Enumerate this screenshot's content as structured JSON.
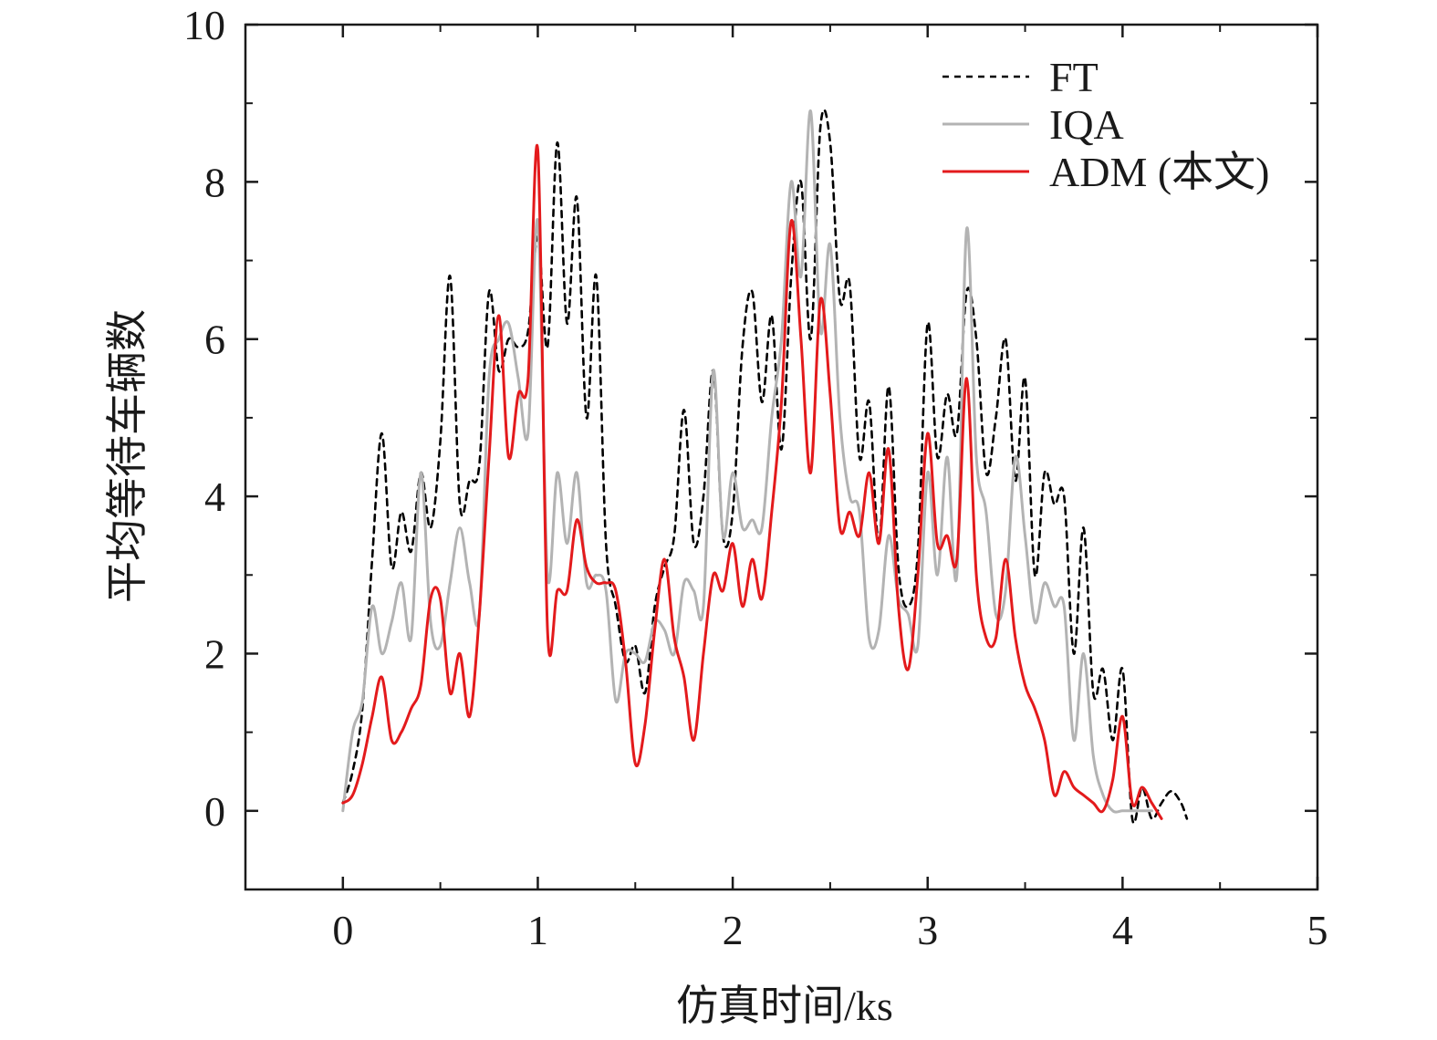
{
  "chart_data": {
    "type": "line",
    "xlabel": "仿真时间/ks",
    "ylabel": "平均等待车辆数",
    "xlim": [
      -0.5,
      5
    ],
    "ylim": [
      -1,
      10
    ],
    "xticks": [
      0,
      1,
      2,
      3,
      4,
      5
    ],
    "yticks": [
      0,
      2,
      4,
      6,
      8,
      10
    ],
    "grid": false,
    "legend_position": "top-right",
    "series": [
      {
        "name": "FT",
        "color": "#000000",
        "style": "dashed",
        "x": [
          0.0,
          0.05,
          0.1,
          0.15,
          0.2,
          0.25,
          0.3,
          0.35,
          0.4,
          0.45,
          0.5,
          0.55,
          0.6,
          0.65,
          0.7,
          0.75,
          0.8,
          0.85,
          0.9,
          0.95,
          1.0,
          1.05,
          1.1,
          1.15,
          1.2,
          1.25,
          1.3,
          1.35,
          1.4,
          1.45,
          1.5,
          1.55,
          1.6,
          1.65,
          1.7,
          1.75,
          1.8,
          1.85,
          1.9,
          1.95,
          2.0,
          2.05,
          2.1,
          2.15,
          2.2,
          2.25,
          2.3,
          2.35,
          2.4,
          2.45,
          2.5,
          2.55,
          2.6,
          2.65,
          2.7,
          2.75,
          2.8,
          2.85,
          2.9,
          2.95,
          3.0,
          3.05,
          3.1,
          3.15,
          3.2,
          3.25,
          3.3,
          3.35,
          3.4,
          3.45,
          3.5,
          3.55,
          3.6,
          3.65,
          3.7,
          3.75,
          3.8,
          3.85,
          3.9,
          3.95,
          4.0,
          4.05,
          4.1,
          4.15,
          4.2,
          4.25,
          4.3,
          4.33
        ],
        "values": [
          0.1,
          0.5,
          1.3,
          3.2,
          4.8,
          3.1,
          3.8,
          3.3,
          4.3,
          3.6,
          4.7,
          6.8,
          3.9,
          4.2,
          4.4,
          6.6,
          5.6,
          6.0,
          5.9,
          6.1,
          7.3,
          5.9,
          8.5,
          6.2,
          7.8,
          5.0,
          6.8,
          3.4,
          2.6,
          1.9,
          2.1,
          1.5,
          2.6,
          3.1,
          3.5,
          5.1,
          3.4,
          4.0,
          5.6,
          3.5,
          3.8,
          5.9,
          6.6,
          5.2,
          6.3,
          4.6,
          6.8,
          8.0,
          6.0,
          8.7,
          8.5,
          6.5,
          6.7,
          4.5,
          5.2,
          3.4,
          5.4,
          3.1,
          2.6,
          3.3,
          6.2,
          4.5,
          5.3,
          4.8,
          6.6,
          6.0,
          4.3,
          5.0,
          6.0,
          4.2,
          5.5,
          3.0,
          4.3,
          3.9,
          4.0,
          2.0,
          3.6,
          1.5,
          1.8,
          0.9,
          1.8,
          -0.1,
          0.3,
          -0.1,
          0.1,
          0.25,
          0.1,
          -0.1
        ]
      },
      {
        "name": "IQA",
        "color": "#b3b3b3",
        "style": "solid",
        "x": [
          0.0,
          0.05,
          0.1,
          0.15,
          0.2,
          0.25,
          0.3,
          0.35,
          0.4,
          0.45,
          0.5,
          0.55,
          0.6,
          0.65,
          0.7,
          0.75,
          0.8,
          0.85,
          0.9,
          0.95,
          1.0,
          1.05,
          1.1,
          1.15,
          1.2,
          1.25,
          1.3,
          1.35,
          1.4,
          1.45,
          1.5,
          1.55,
          1.6,
          1.65,
          1.7,
          1.75,
          1.8,
          1.85,
          1.9,
          1.95,
          2.0,
          2.05,
          2.1,
          2.15,
          2.2,
          2.25,
          2.3,
          2.35,
          2.4,
          2.45,
          2.5,
          2.55,
          2.6,
          2.65,
          2.7,
          2.75,
          2.8,
          2.85,
          2.9,
          2.95,
          3.0,
          3.05,
          3.1,
          3.15,
          3.2,
          3.25,
          3.3,
          3.35,
          3.4,
          3.45,
          3.5,
          3.55,
          3.6,
          3.65,
          3.7,
          3.75,
          3.8,
          3.85,
          3.9,
          3.95,
          4.0,
          4.05,
          4.1,
          4.15
        ],
        "values": [
          0.0,
          1.0,
          1.4,
          2.6,
          2.0,
          2.4,
          2.9,
          2.2,
          4.3,
          2.4,
          2.1,
          2.9,
          3.6,
          2.9,
          2.5,
          5.5,
          6.0,
          6.2,
          5.5,
          4.8,
          7.5,
          3.0,
          4.3,
          3.4,
          4.3,
          2.9,
          3.0,
          2.8,
          1.4,
          2.0,
          2.0,
          1.9,
          2.4,
          2.3,
          2.0,
          2.9,
          2.8,
          2.6,
          5.6,
          3.5,
          4.3,
          3.6,
          3.7,
          3.6,
          5.0,
          6.0,
          8.0,
          6.8,
          8.9,
          6.1,
          7.2,
          5.0,
          4.0,
          3.8,
          2.2,
          2.3,
          3.5,
          2.7,
          2.5,
          2.1,
          4.3,
          3.0,
          4.5,
          3.0,
          7.4,
          4.5,
          3.8,
          2.5,
          2.8,
          4.5,
          3.5,
          2.4,
          2.9,
          2.6,
          2.6,
          0.9,
          2.0,
          0.7,
          0.2,
          0.0,
          0.0,
          0.0,
          0.0,
          0.0
        ]
      },
      {
        "name": "ADM (本文)",
        "color": "#e31a1c",
        "style": "solid",
        "x": [
          0.0,
          0.05,
          0.1,
          0.15,
          0.2,
          0.25,
          0.3,
          0.35,
          0.4,
          0.45,
          0.5,
          0.55,
          0.6,
          0.65,
          0.7,
          0.75,
          0.8,
          0.85,
          0.9,
          0.95,
          1.0,
          1.05,
          1.1,
          1.15,
          1.2,
          1.25,
          1.3,
          1.35,
          1.4,
          1.45,
          1.5,
          1.55,
          1.6,
          1.65,
          1.7,
          1.75,
          1.8,
          1.85,
          1.9,
          1.95,
          2.0,
          2.05,
          2.1,
          2.15,
          2.2,
          2.25,
          2.3,
          2.35,
          2.4,
          2.45,
          2.5,
          2.55,
          2.6,
          2.65,
          2.7,
          2.75,
          2.8,
          2.85,
          2.9,
          2.95,
          3.0,
          3.05,
          3.1,
          3.15,
          3.2,
          3.25,
          3.3,
          3.35,
          3.4,
          3.45,
          3.5,
          3.55,
          3.6,
          3.65,
          3.7,
          3.75,
          3.8,
          3.85,
          3.9,
          3.95,
          4.0,
          4.05,
          4.1,
          4.15,
          4.2
        ],
        "values": [
          0.1,
          0.2,
          0.6,
          1.2,
          1.7,
          0.9,
          1.0,
          1.3,
          1.6,
          2.7,
          2.7,
          1.5,
          2.0,
          1.2,
          2.5,
          4.5,
          6.3,
          4.5,
          5.3,
          5.5,
          8.4,
          2.3,
          2.8,
          2.8,
          3.7,
          3.1,
          2.9,
          2.9,
          2.8,
          1.9,
          0.6,
          1.1,
          2.3,
          3.2,
          2.2,
          1.7,
          0.9,
          2.0,
          3.0,
          2.8,
          3.4,
          2.6,
          3.2,
          2.7,
          3.8,
          5.2,
          7.5,
          6.0,
          4.3,
          6.5,
          5.3,
          3.6,
          3.8,
          3.5,
          4.3,
          3.4,
          4.6,
          2.6,
          1.8,
          3.0,
          4.8,
          3.4,
          3.5,
          3.2,
          5.5,
          3.0,
          2.2,
          2.2,
          3.2,
          2.2,
          1.6,
          1.3,
          0.9,
          0.2,
          0.5,
          0.3,
          0.2,
          0.1,
          0.0,
          0.4,
          1.2,
          0.1,
          0.3,
          0.1,
          -0.1
        ]
      }
    ]
  }
}
